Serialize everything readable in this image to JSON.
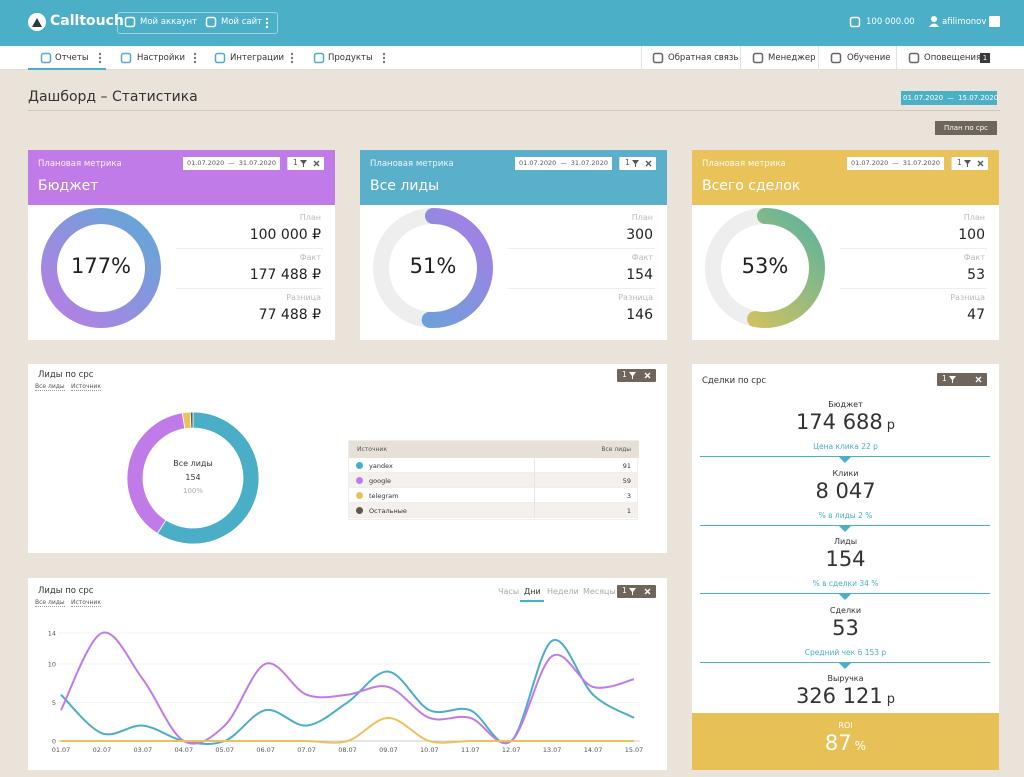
{
  "header": {
    "logo": "Calltouch",
    "account": "Мой аккаунт",
    "site": "Мой сайт",
    "balance": "100 000.00",
    "user": "afilimonov"
  },
  "nav": {
    "left": [
      "Отчеты",
      "Настройки",
      "Интеграции",
      "Продукты"
    ],
    "active": 0,
    "right": [
      "Обратная связь",
      "Менеджер",
      "Обучение",
      "Оповещения"
    ],
    "notifications": 1
  },
  "page": {
    "title": "Дашборд – Статистика",
    "date_from": "01.07.2020",
    "date_sep": "—",
    "date_to": "15.07.2020",
    "plan_button": "План по срс"
  },
  "metric_cards": [
    {
      "caption": "Плановая метрика",
      "title": "Бюджет",
      "date_from": "01.07.2020",
      "date_sep": "—",
      "date_to": "31.07.2020",
      "filters": 1,
      "color": "#c17be9",
      "gradient": [
        "#b97de6",
        "#5fa9d6"
      ],
      "percent": {
        "value": 177,
        "label": "177%"
      },
      "rows": [
        {
          "label": "План",
          "value": 100000,
          "value_label": "100 000 ₽"
        },
        {
          "label": "Факт",
          "value": 177488,
          "value_label": "177 488 ₽"
        },
        {
          "label": "Разница",
          "value": 77488,
          "value_label": "77 488 ₽"
        }
      ]
    },
    {
      "caption": "Плановая метрика",
      "title": "Все лиды",
      "date_from": "01.07.2020",
      "date_sep": "—",
      "date_to": "31.07.2020",
      "filters": 1,
      "color": "#5aafcb",
      "gradient": [
        "#5fa9d6",
        "#a77de6"
      ],
      "percent": {
        "value": 51,
        "label": "51%"
      },
      "rows": [
        {
          "label": "План",
          "value": 300
        },
        {
          "label": "Факт",
          "value": 154
        },
        {
          "label": "Разница",
          "value": 146
        }
      ]
    },
    {
      "caption": "Плановая метрика",
      "title": "Всего сделок",
      "date_from": "01.07.2020",
      "date_sep": "—",
      "date_to": "31.07.2020",
      "filters": 1,
      "color": "#e9c35a",
      "gradient": [
        "#e6c456",
        "#5bb39d"
      ],
      "percent": {
        "value": 53,
        "label": "53%"
      },
      "rows": [
        {
          "label": "План",
          "value": 100
        },
        {
          "label": "Факт",
          "value": 53
        },
        {
          "label": "Разница",
          "value": 47
        }
      ]
    }
  ],
  "lead_share": {
    "type": "pie",
    "title": "Лиды по срс",
    "filters": [
      "Все лиды",
      "Источник"
    ],
    "filter_count": 1,
    "center": {
      "label": "Все лиды",
      "value": 154,
      "share": {
        "value": 100,
        "label": "100%"
      }
    },
    "table_header": [
      "Источник",
      "Все лиды"
    ],
    "categories": [
      "yandex",
      "google",
      "telegram",
      "Остальные"
    ],
    "values": [
      91,
      59,
      3,
      1
    ],
    "colors": [
      "#4aaec6",
      "#c17be9",
      "#e9c35a",
      "#5e5650"
    ]
  },
  "lead_chart": {
    "type": "line",
    "title": "Лиды по срс",
    "filters": [
      "Все лиды",
      "Источник"
    ],
    "filter_count": 1,
    "tabs": [
      "Часы",
      "Дни",
      "Недели",
      "Месяцы"
    ],
    "active_tab": 1,
    "categories": [
      "01.07",
      "02.07",
      "03.07",
      "04.07",
      "05.07",
      "06.07",
      "07.07",
      "08.07",
      "09.07",
      "10.07",
      "11.07",
      "12.07",
      "13.07",
      "14.07",
      "15.07"
    ],
    "ylim": [
      0,
      14
    ],
    "yticks": [
      0,
      5,
      10,
      14
    ],
    "grid": true,
    "series": [
      {
        "color": "#4aaec6",
        "values": [
          6,
          1,
          2,
          0,
          0,
          4,
          2,
          5,
          9,
          4,
          4,
          0,
          13,
          6,
          3
        ]
      },
      {
        "color": "#c17be9",
        "values": [
          4,
          14,
          8,
          0,
          2,
          10,
          6,
          6,
          7,
          3,
          3,
          0,
          11,
          7,
          8
        ]
      },
      {
        "color": "#e9c35a",
        "values": [
          0,
          0,
          0,
          0,
          0,
          0,
          0,
          0,
          3,
          0,
          0,
          0,
          0,
          0,
          0
        ]
      }
    ]
  },
  "deals": {
    "title": "Сделки по срс",
    "filter_count": 1,
    "steps": [
      {
        "label": "Бюджет",
        "value": 174688,
        "value_label": "174 688",
        "unit": "р",
        "note": "Цена клика 22 р"
      },
      {
        "label": "Клики",
        "value": 8047,
        "value_label": "8 047",
        "note": "% в лиды 2 %"
      },
      {
        "label": "Лиды",
        "value": 154,
        "note": "% в сделки 34 %"
      },
      {
        "label": "Сделки",
        "value": 53,
        "note": "Средний чек 6 153 р"
      },
      {
        "label": "Выручка",
        "value": 326121,
        "value_label": "326 121",
        "unit": "р"
      }
    ],
    "roi": {
      "label": "ROI",
      "value": 87,
      "unit": "%"
    }
  }
}
